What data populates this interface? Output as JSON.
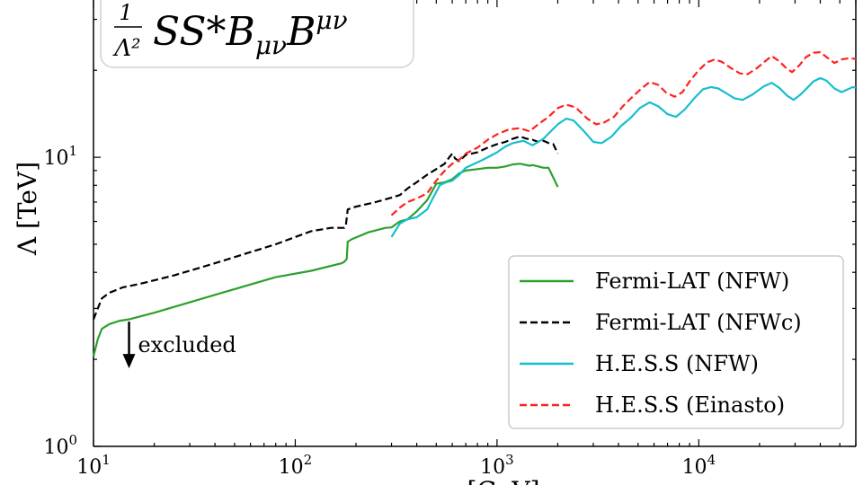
{
  "chart_data": {
    "type": "line",
    "title": "",
    "formula": {
      "prefix_numerator": "1",
      "prefix_denominator": "Λ²",
      "operator_text": "SS*B",
      "operator_sub": "μν",
      "operator_b2": "B",
      "operator_sup": "μν"
    },
    "xlabel": "[GeV]",
    "ylabel": "Λ [TeV]",
    "xscale": "log",
    "yscale": "log",
    "xlim": [
      10,
      60000
    ],
    "ylim": [
      1,
      35
    ],
    "x_ticks": [
      {
        "base": "10",
        "exp": "1",
        "value": 10
      },
      {
        "base": "10",
        "exp": "2",
        "value": 100
      },
      {
        "base": "10",
        "exp": "3",
        "value": 1000
      },
      {
        "base": "10",
        "exp": "4",
        "value": 10000
      }
    ],
    "y_ticks": [
      {
        "base": "10",
        "exp": "0",
        "value": 1
      },
      {
        "base": "10",
        "exp": "1",
        "value": 10
      }
    ],
    "legend_position": "lower-right",
    "annotation": {
      "text": "excluded",
      "x": 15,
      "y": 2.7
    },
    "series": [
      {
        "name": "Fermi-LAT (NFW)",
        "color": "#2ca02c",
        "dash": "solid",
        "points": [
          [
            10,
            2.05
          ],
          [
            10.5,
            2.35
          ],
          [
            11,
            2.55
          ],
          [
            12,
            2.65
          ],
          [
            13.5,
            2.72
          ],
          [
            15,
            2.75
          ],
          [
            20,
            2.9
          ],
          [
            30,
            3.15
          ],
          [
            50,
            3.5
          ],
          [
            80,
            3.85
          ],
          [
            120,
            4.05
          ],
          [
            170,
            4.3
          ],
          [
            175,
            4.35
          ],
          [
            180,
            4.45
          ],
          [
            182,
            5.1
          ],
          [
            190,
            5.2
          ],
          [
            230,
            5.5
          ],
          [
            280,
            5.7
          ],
          [
            300,
            5.72
          ],
          [
            330,
            6.0
          ],
          [
            360,
            6.1
          ],
          [
            400,
            6.5
          ],
          [
            450,
            7.1
          ],
          [
            500,
            8.1
          ],
          [
            550,
            8.2
          ],
          [
            600,
            8.4
          ],
          [
            650,
            8.8
          ],
          [
            700,
            9.0
          ],
          [
            800,
            9.1
          ],
          [
            900,
            9.2
          ],
          [
            1000,
            9.2
          ],
          [
            1100,
            9.3
          ],
          [
            1200,
            9.45
          ],
          [
            1300,
            9.5
          ],
          [
            1450,
            9.35
          ],
          [
            1500,
            9.4
          ],
          [
            1600,
            9.3
          ],
          [
            1700,
            9.2
          ],
          [
            1800,
            9.2
          ],
          [
            1900,
            8.5
          ],
          [
            2000,
            7.9
          ]
        ]
      },
      {
        "name": "Fermi-LAT (NFWc)",
        "color": "#000000",
        "dash": "dashed",
        "points": [
          [
            10,
            2.75
          ],
          [
            10.5,
            3.0
          ],
          [
            11,
            3.25
          ],
          [
            12,
            3.4
          ],
          [
            14,
            3.55
          ],
          [
            17,
            3.65
          ],
          [
            25,
            3.9
          ],
          [
            40,
            4.3
          ],
          [
            60,
            4.7
          ],
          [
            80,
            5.0
          ],
          [
            100,
            5.3
          ],
          [
            120,
            5.55
          ],
          [
            150,
            5.7
          ],
          [
            175,
            5.7
          ],
          [
            178,
            5.8
          ],
          [
            182,
            6.6
          ],
          [
            200,
            6.75
          ],
          [
            250,
            7.0
          ],
          [
            300,
            7.25
          ],
          [
            330,
            7.4
          ],
          [
            360,
            7.8
          ],
          [
            400,
            8.2
          ],
          [
            450,
            8.7
          ],
          [
            500,
            9.1
          ],
          [
            550,
            9.5
          ],
          [
            580,
            10.0
          ],
          [
            600,
            10.3
          ],
          [
            620,
            9.9
          ],
          [
            650,
            9.7
          ],
          [
            700,
            10.2
          ],
          [
            800,
            10.4
          ],
          [
            900,
            10.8
          ],
          [
            1000,
            11.1
          ],
          [
            1100,
            11.3
          ],
          [
            1200,
            11.6
          ],
          [
            1300,
            11.8
          ],
          [
            1400,
            11.6
          ],
          [
            1500,
            11.5
          ],
          [
            1600,
            11.3
          ],
          [
            1700,
            11.4
          ],
          [
            1800,
            11.2
          ],
          [
            1900,
            11.1
          ],
          [
            2000,
            10.3
          ]
        ]
      },
      {
        "name": "H.E.S.S (NFW)",
        "color": "#17becf",
        "dash": "solid",
        "points": [
          [
            300,
            5.3
          ],
          [
            330,
            5.9
          ],
          [
            360,
            6.1
          ],
          [
            400,
            6.2
          ],
          [
            450,
            6.6
          ],
          [
            480,
            7.2
          ],
          [
            520,
            8.0
          ],
          [
            560,
            8.2
          ],
          [
            600,
            8.3
          ],
          [
            650,
            8.7
          ],
          [
            700,
            9.2
          ],
          [
            800,
            9.6
          ],
          [
            900,
            10.0
          ],
          [
            1000,
            10.4
          ],
          [
            1100,
            10.9
          ],
          [
            1200,
            11.2
          ],
          [
            1350,
            11.4
          ],
          [
            1500,
            11.0
          ],
          [
            1700,
            11.6
          ],
          [
            2000,
            13.0
          ],
          [
            2200,
            13.6
          ],
          [
            2400,
            13.4
          ],
          [
            2700,
            12.3
          ],
          [
            3000,
            11.3
          ],
          [
            3300,
            11.2
          ],
          [
            3700,
            11.8
          ],
          [
            4100,
            12.8
          ],
          [
            4600,
            13.7
          ],
          [
            5100,
            14.8
          ],
          [
            5700,
            15.5
          ],
          [
            6300,
            15.0
          ],
          [
            7000,
            14.1
          ],
          [
            7700,
            13.8
          ],
          [
            8500,
            14.6
          ],
          [
            9500,
            16.0
          ],
          [
            10500,
            17.2
          ],
          [
            11500,
            17.5
          ],
          [
            12500,
            17.3
          ],
          [
            13800,
            16.6
          ],
          [
            15000,
            16.0
          ],
          [
            16500,
            15.8
          ],
          [
            18500,
            16.5
          ],
          [
            21000,
            17.6
          ],
          [
            23000,
            18.1
          ],
          [
            25000,
            17.4
          ],
          [
            27500,
            16.3
          ],
          [
            29500,
            15.8
          ],
          [
            32000,
            16.5
          ],
          [
            34500,
            17.4
          ],
          [
            37000,
            18.3
          ],
          [
            40000,
            18.8
          ],
          [
            43000,
            18.4
          ],
          [
            47000,
            17.3
          ],
          [
            51000,
            16.8
          ],
          [
            55000,
            17.2
          ],
          [
            58000,
            17.5
          ],
          [
            60000,
            17.4
          ]
        ]
      },
      {
        "name": "H.E.S.S (Einasto)",
        "color": "#ff2020",
        "dash": "dashed",
        "points": [
          [
            300,
            6.3
          ],
          [
            330,
            6.7
          ],
          [
            360,
            7.0
          ],
          [
            400,
            7.2
          ],
          [
            450,
            7.5
          ],
          [
            480,
            8.0
          ],
          [
            520,
            8.6
          ],
          [
            560,
            9.1
          ],
          [
            600,
            9.5
          ],
          [
            650,
            9.8
          ],
          [
            700,
            10.3
          ],
          [
            800,
            10.8
          ],
          [
            900,
            11.5
          ],
          [
            1000,
            12.0
          ],
          [
            1150,
            12.5
          ],
          [
            1300,
            12.6
          ],
          [
            1450,
            12.3
          ],
          [
            1600,
            13.0
          ],
          [
            1800,
            13.8
          ],
          [
            2000,
            14.8
          ],
          [
            2200,
            15.2
          ],
          [
            2450,
            14.9
          ],
          [
            2800,
            13.6
          ],
          [
            3100,
            13.0
          ],
          [
            3400,
            13.2
          ],
          [
            3800,
            13.8
          ],
          [
            4200,
            15.0
          ],
          [
            4700,
            16.2
          ],
          [
            5200,
            17.3
          ],
          [
            5700,
            18.2
          ],
          [
            6300,
            17.8
          ],
          [
            6900,
            16.7
          ],
          [
            7600,
            16.2
          ],
          [
            8300,
            16.8
          ],
          [
            9100,
            18.5
          ],
          [
            10000,
            20.0
          ],
          [
            11000,
            21.3
          ],
          [
            12000,
            21.8
          ],
          [
            13000,
            21.4
          ],
          [
            14500,
            20.3
          ],
          [
            16000,
            19.5
          ],
          [
            17500,
            19.4
          ],
          [
            19500,
            20.4
          ],
          [
            21500,
            21.6
          ],
          [
            23000,
            22.4
          ],
          [
            25000,
            21.5
          ],
          [
            27000,
            20.4
          ],
          [
            29000,
            19.7
          ],
          [
            31500,
            20.8
          ],
          [
            34000,
            22.2
          ],
          [
            37000,
            23.0
          ],
          [
            40000,
            23.1
          ],
          [
            43000,
            22.2
          ],
          [
            47000,
            21.2
          ],
          [
            51000,
            21.8
          ],
          [
            55000,
            22.0
          ],
          [
            60000,
            21.9
          ]
        ]
      }
    ]
  }
}
